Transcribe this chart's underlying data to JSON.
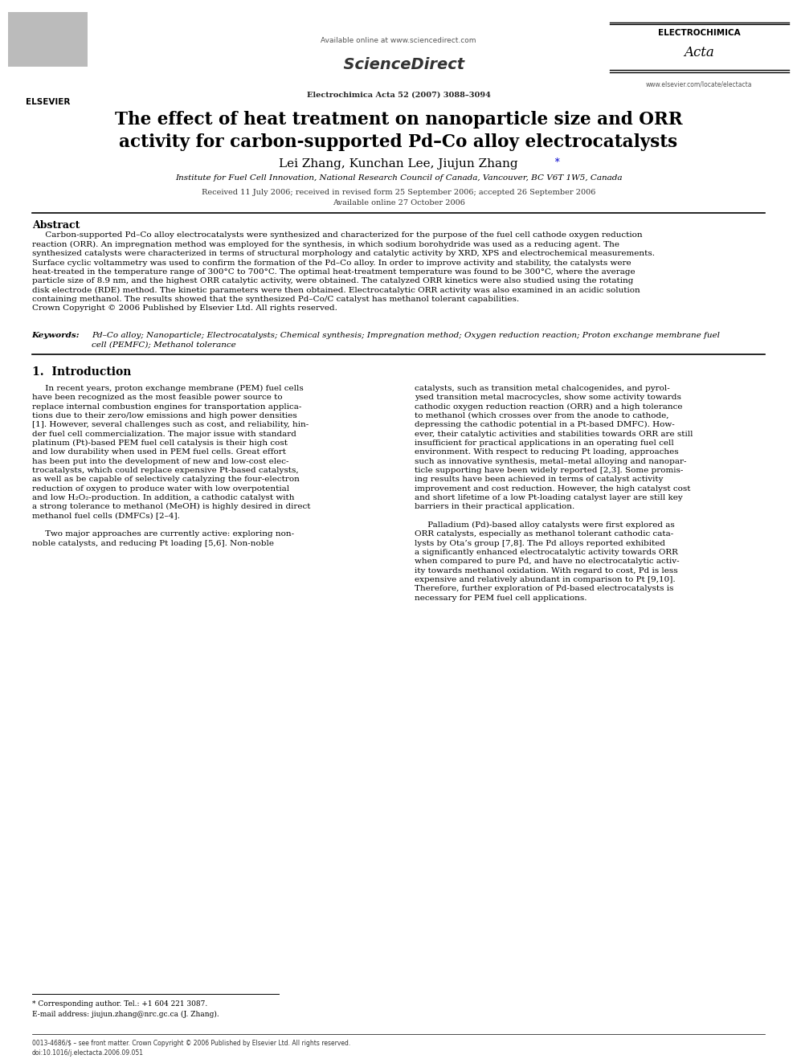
{
  "background_color": "#ffffff",
  "page_width": 9.92,
  "page_height": 13.23,
  "header": {
    "available_online_text": "Available online at www.sciencedirect.com",
    "journal_ref": "Electrochimica Acta 52 (2007) 3088–3094",
    "elsevier_text": "ELSEVIER",
    "sciencedirect_text": "ScienceDirect",
    "electrochimica_text": "ELECTROCHIMICA",
    "acta_text": "Acta",
    "website_text": "www.elsevier.com/locate/electacta"
  },
  "title_line1": "The effect of heat treatment on nanoparticle size and ORR",
  "title_line2": "activity for carbon-supported Pd–Co alloy electrocatalysts",
  "authors": "Lei Zhang, Kunchan Lee, Jiujun Zhang",
  "affiliation": "Institute for Fuel Cell Innovation, National Research Council of Canada, Vancouver, BC V6T 1W5, Canada",
  "dates_line1": "Received 11 July 2006; received in revised form 25 September 2006; accepted 26 September 2006",
  "dates_line2": "Available online 27 October 2006",
  "abstract_title": "Abstract",
  "abstract_lines": [
    "     Carbon-supported Pd–Co alloy electrocatalysts were synthesized and characterized for the purpose of the fuel cell cathode oxygen reduction",
    "reaction (ORR). An impregnation method was employed for the synthesis, in which sodium borohydride was used as a reducing agent. The",
    "synthesized catalysts were characterized in terms of structural morphology and catalytic activity by XRD, XPS and electrochemical measurements.",
    "Surface cyclic voltammetry was used to confirm the formation of the Pd–Co alloy. In order to improve activity and stability, the catalysts were",
    "heat-treated in the temperature range of 300°C to 700°C. The optimal heat-treatment temperature was found to be 300°C, where the average",
    "particle size of 8.9 nm, and the highest ORR catalytic activity, were obtained. The catalyzed ORR kinetics were also studied using the rotating",
    "disk electrode (RDE) method. The kinetic parameters were then obtained. Electrocatalytic ORR activity was also examined in an acidic solution",
    "containing methanol. The results showed that the synthesized Pd–Co/C catalyst has methanol tolerant capabilities.",
    "Crown Copyright © 2006 Published by Elsevier Ltd. All rights reserved."
  ],
  "keywords_label": "Keywords:",
  "keywords_line1": "Pd–Co alloy; Nanoparticle; Electrocatalysts; Chemical synthesis; Impregnation method; Oxygen reduction reaction; Proton exchange membrane fuel",
  "keywords_line2": "cell (PEMFC); Methanol tolerance",
  "section1_title": "1.  Introduction",
  "col1_lines": [
    "     In recent years, proton exchange membrane (PEM) fuel cells",
    "have been recognized as the most feasible power source to",
    "replace internal combustion engines for transportation applica-",
    "tions due to their zero/low emissions and high power densities",
    "[1]. However, several challenges such as cost, and reliability, hin-",
    "der fuel cell commercialization. The major issue with standard",
    "platinum (Pt)-based PEM fuel cell catalysis is their high cost",
    "and low durability when used in PEM fuel cells. Great effort",
    "has been put into the development of new and low-cost elec-",
    "trocatalysts, which could replace expensive Pt-based catalysts,",
    "as well as be capable of selectively catalyzing the four-electron",
    "reduction of oxygen to produce water with low overpotential",
    "and low H₂O₂-production. In addition, a cathodic catalyst with",
    "a strong tolerance to methanol (MeOH) is highly desired in direct",
    "methanol fuel cells (DMFCs) [2–4].",
    "",
    "     Two major approaches are currently active: exploring non-",
    "noble catalysts, and reducing Pt loading [5,6]. Non-noble"
  ],
  "col2_lines": [
    "catalysts, such as transition metal chalcogenides, and pyrol-",
    "ysed transition metal macrocycles, show some activity towards",
    "cathodic oxygen reduction reaction (ORR) and a high tolerance",
    "to methanol (which crosses over from the anode to cathode,",
    "depressing the cathodic potential in a Pt-based DMFC). How-",
    "ever, their catalytic activities and stabilities towards ORR are still",
    "insufficient for practical applications in an operating fuel cell",
    "environment. With respect to reducing Pt loading, approaches",
    "such as innovative synthesis, metal–metal alloying and nanopar-",
    "ticle supporting have been widely reported [2,3]. Some promis-",
    "ing results have been achieved in terms of catalyst activity",
    "improvement and cost reduction. However, the high catalyst cost",
    "and short lifetime of a low Pt-loading catalyst layer are still key",
    "barriers in their practical application.",
    "",
    "     Palladium (Pd)-based alloy catalysts were first explored as",
    "ORR catalysts, especially as methanol tolerant cathodic cata-",
    "lysts by Ota’s group [7,8]. The Pd alloys reported exhibited",
    "a significantly enhanced electrocatalytic activity towards ORR",
    "when compared to pure Pd, and have no electrocatalytic activ-",
    "ity towards methanol oxidation. With regard to cost, Pd is less",
    "expensive and relatively abundant in comparison to Pt [9,10].",
    "Therefore, further exploration of Pd-based electrocatalysts is",
    "necessary for PEM fuel cell applications."
  ],
  "footnote1": "* Corresponding author. Tel.: +1 604 221 3087.",
  "footnote2": "E-mail address: jiujun.zhang@nrc.gc.ca (J. Zhang).",
  "bottom_line1": "0013-4686/$ – see front matter. Crown Copyright © 2006 Published by Elsevier Ltd. All rights reserved.",
  "bottom_line2": "doi:10.1016/j.electacta.2006.09.051"
}
